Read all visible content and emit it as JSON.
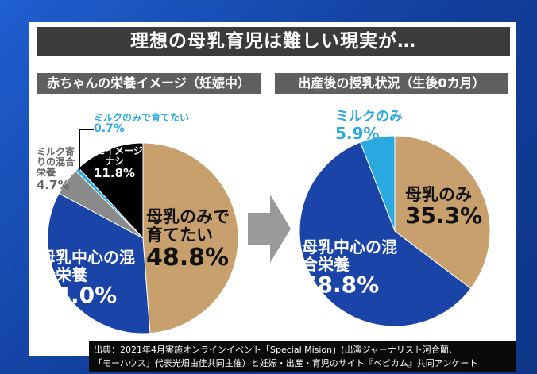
{
  "title": "理想の母乳育児は難しい現実が…",
  "source": [
    "出典：2021年4月実施オンラインイベント「Special Mision」(出演ジャーナリスト河合蘭、",
    "「モーハウス」代表光畑由佳共同主催）と妊娠・出産・育児のサイト『ベビカム』共同アンケート"
  ],
  "chart_data": [
    {
      "type": "pie",
      "title": "赤ちゃんの栄養イメージ（妊娠中）",
      "slices": [
        {
          "label": "母乳のみで育てたい",
          "value": 48.8,
          "value_label": "48.8%",
          "color": "#c8a06e"
        },
        {
          "label": "母乳中心の混合栄養",
          "value": 34.0,
          "value_label": "34.0%",
          "color": "#1a44a8"
        },
        {
          "label": "ミルク寄りの混合栄養",
          "value": 4.7,
          "value_label": "4.7%",
          "color": "#8a8a8a"
        },
        {
          "label": "ミルクのみで育てたい",
          "value": 0.7,
          "value_label": "0.7%",
          "color": "#2aa8e0"
        },
        {
          "label": "特にイメージナシ",
          "value": 11.8,
          "value_label": "11.8%",
          "color": "#000000"
        }
      ]
    },
    {
      "type": "pie",
      "title": "出産後の授乳状況（生後0カ月）",
      "slices": [
        {
          "label": "母乳のみ",
          "value": 35.3,
          "value_label": "35.3%",
          "color": "#c8a06e"
        },
        {
          "label": "母乳中心の混合栄養",
          "value": 58.8,
          "value_label": "58.8%",
          "color": "#1a44a8"
        },
        {
          "label": "ミルクのみ",
          "value": 5.9,
          "value_label": "5.9%",
          "color": "#2aa8e0"
        }
      ]
    }
  ]
}
